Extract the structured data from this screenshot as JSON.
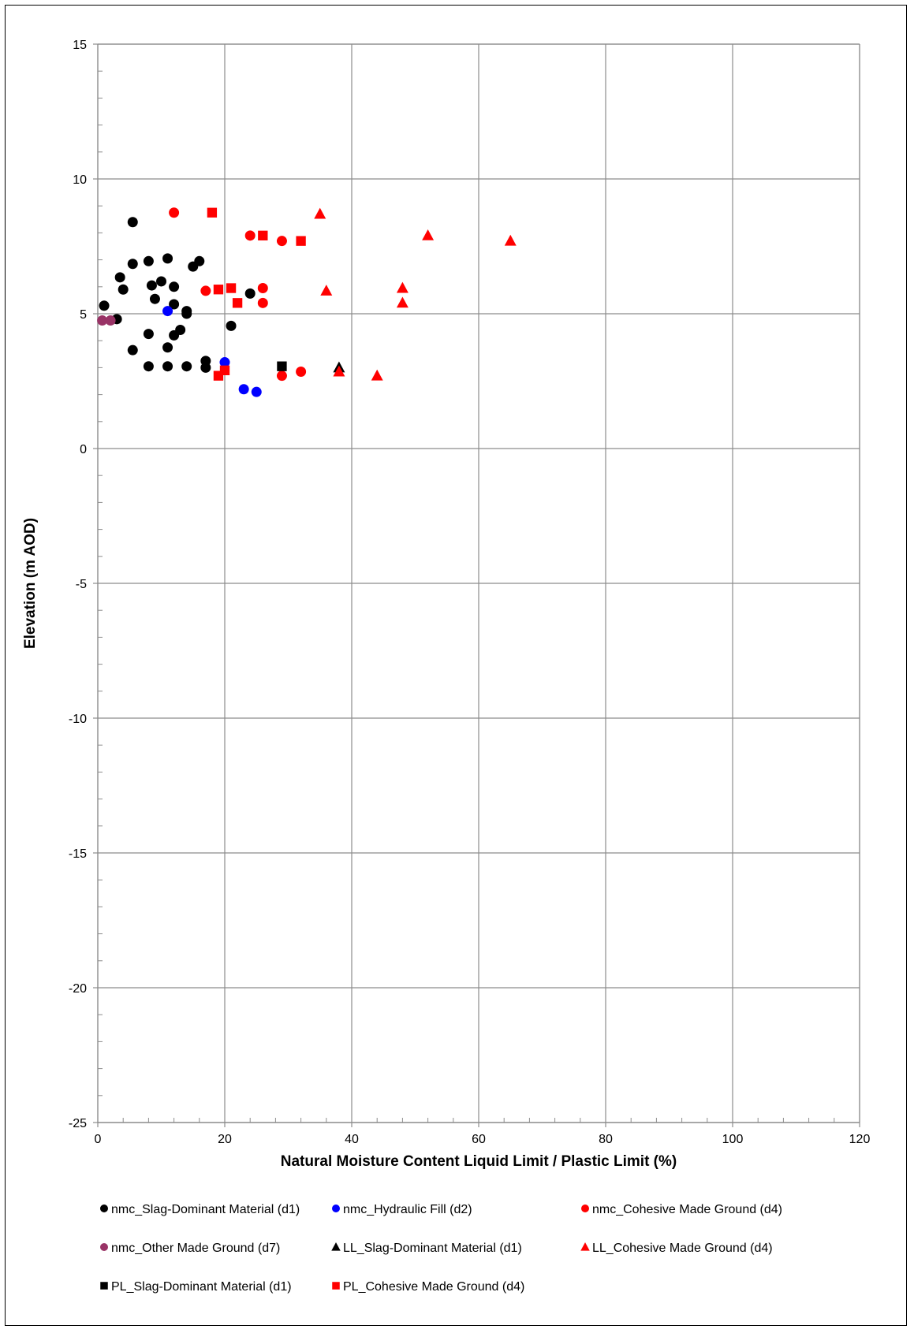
{
  "chart_data": {
    "type": "scatter",
    "title": "",
    "xlabel": "Natural Moisture Content Liquid Limit / Plastic Limit (%)",
    "ylabel": "Elevation (m AOD)",
    "xlim": [
      0,
      120
    ],
    "ylim": [
      -25,
      15
    ],
    "x_ticks": [
      0,
      20,
      40,
      60,
      80,
      100,
      120
    ],
    "y_ticks": [
      -25,
      -20,
      -15,
      -10,
      -5,
      0,
      5,
      10,
      15
    ],
    "grid": true,
    "legend_position": "bottom",
    "series": [
      {
        "name": "nmc_Slag-Dominant Material (d1)",
        "marker": "circle",
        "color": "#000000",
        "points": [
          [
            5.5,
            8.4
          ],
          [
            1,
            5.3
          ],
          [
            3,
            4.8
          ],
          [
            4,
            5.9
          ],
          [
            3.5,
            6.35
          ],
          [
            5.5,
            6.85
          ],
          [
            5.5,
            3.65
          ],
          [
            8,
            6.95
          ],
          [
            8.5,
            6.05
          ],
          [
            9,
            5.55
          ],
          [
            10,
            6.2
          ],
          [
            11,
            7.05
          ],
          [
            12,
            6.0
          ],
          [
            12,
            5.35
          ],
          [
            14,
            5.1
          ],
          [
            14,
            5.0
          ],
          [
            15,
            6.75
          ],
          [
            16,
            6.95
          ],
          [
            13,
            4.4
          ],
          [
            12,
            4.2
          ],
          [
            8,
            4.25
          ],
          [
            11,
            3.75
          ],
          [
            8,
            3.05
          ],
          [
            11,
            3.05
          ],
          [
            14,
            3.05
          ],
          [
            17,
            3.25
          ],
          [
            17,
            3.0
          ],
          [
            21,
            4.55
          ],
          [
            24,
            5.75
          ]
        ]
      },
      {
        "name": "nmc_Hydraulic Fill (d2)",
        "marker": "circle",
        "color": "#0000ff",
        "points": [
          [
            11,
            5.1
          ],
          [
            20,
            3.2
          ],
          [
            23,
            2.2
          ],
          [
            25,
            2.1
          ]
        ]
      },
      {
        "name": "nmc_Cohesive Made Ground (d4)",
        "marker": "circle",
        "color": "#ff0000",
        "points": [
          [
            12,
            8.75
          ],
          [
            24,
            7.9
          ],
          [
            29,
            7.7
          ],
          [
            17,
            5.85
          ],
          [
            26,
            5.95
          ],
          [
            26,
            5.4
          ],
          [
            29,
            2.7
          ],
          [
            32,
            2.85
          ]
        ]
      },
      {
        "name": "nmc_Other Made Ground (d7)",
        "marker": "circle",
        "color": "#993366",
        "points": [
          [
            0.7,
            4.75
          ],
          [
            2,
            4.75
          ]
        ]
      },
      {
        "name": "LL_Slag-Dominant Material (d1)",
        "marker": "triangle",
        "color": "#000000",
        "points": [
          [
            38,
            3.0
          ]
        ]
      },
      {
        "name": "LL_Cohesive Made Ground (d4)",
        "marker": "triangle",
        "color": "#ff0000",
        "points": [
          [
            35,
            8.7
          ],
          [
            52,
            7.9
          ],
          [
            65,
            7.7
          ],
          [
            36,
            5.85
          ],
          [
            48,
            5.95
          ],
          [
            48,
            5.4
          ],
          [
            38,
            2.85
          ],
          [
            44,
            2.7
          ]
        ]
      },
      {
        "name": "PL_Slag-Dominant Material (d1)",
        "marker": "square",
        "color": "#000000",
        "points": [
          [
            29,
            3.05
          ]
        ]
      },
      {
        "name": "PL_Cohesive Made Ground (d4)",
        "marker": "square",
        "color": "#ff0000",
        "points": [
          [
            18,
            8.75
          ],
          [
            26,
            7.9
          ],
          [
            32,
            7.7
          ],
          [
            19,
            5.9
          ],
          [
            21,
            5.95
          ],
          [
            22,
            5.4
          ],
          [
            19,
            2.7
          ],
          [
            20,
            2.9
          ]
        ]
      }
    ]
  }
}
